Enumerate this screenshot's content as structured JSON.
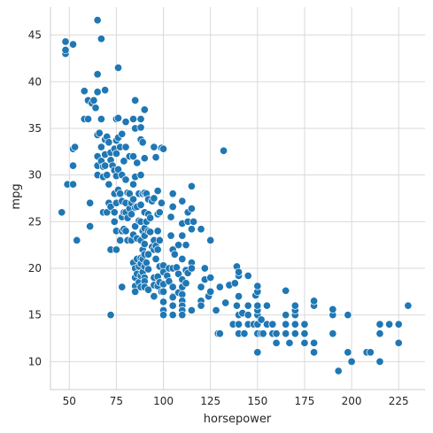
{
  "chart_data": {
    "type": "scatter",
    "title": "",
    "xlabel": "horsepower",
    "ylabel": "mpg",
    "xlim": [
      40,
      239
    ],
    "ylim": [
      7,
      48
    ],
    "xticks": [
      50,
      75,
      100,
      125,
      150,
      175,
      200,
      225
    ],
    "yticks": [
      10,
      15,
      20,
      25,
      30,
      35,
      40,
      45
    ],
    "grid": true,
    "legend": "none",
    "marker_color": "#1f77b4",
    "points": [
      [
        46,
        26
      ],
      [
        48,
        43
      ],
      [
        48,
        43.4
      ],
      [
        48,
        44.3
      ],
      [
        49,
        29
      ],
      [
        52,
        44
      ],
      [
        52,
        31
      ],
      [
        52,
        32.8
      ],
      [
        52,
        29
      ],
      [
        53,
        33
      ],
      [
        54,
        23
      ],
      [
        58,
        36
      ],
      [
        58,
        39
      ],
      [
        60,
        36
      ],
      [
        60,
        38
      ],
      [
        61,
        24.5
      ],
      [
        61,
        27
      ],
      [
        62,
        37.7
      ],
      [
        63,
        38
      ],
      [
        64,
        37.2
      ],
      [
        65,
        46.6
      ],
      [
        65,
        40.8
      ],
      [
        65,
        38.9
      ],
      [
        65,
        34.3
      ],
      [
        65,
        32
      ],
      [
        65,
        31
      ],
      [
        65,
        30
      ],
      [
        66,
        34.5
      ],
      [
        67,
        44.6
      ],
      [
        67,
        36
      ],
      [
        67,
        33
      ],
      [
        67,
        31.5
      ],
      [
        68,
        30.9
      ],
      [
        68,
        29.8
      ],
      [
        68,
        26
      ],
      [
        69,
        39.1
      ],
      [
        69,
        33.8
      ],
      [
        69,
        32.2
      ],
      [
        69,
        31
      ],
      [
        70,
        34.1
      ],
      [
        70,
        30
      ],
      [
        70,
        26
      ],
      [
        71,
        33.5
      ],
      [
        71,
        27
      ],
      [
        71,
        29
      ],
      [
        72,
        32.4
      ],
      [
        72,
        31.6
      ],
      [
        72,
        26.6
      ],
      [
        72,
        22
      ],
      [
        72,
        15
      ],
      [
        73,
        31
      ],
      [
        74,
        32.8
      ],
      [
        74,
        30.5
      ],
      [
        74,
        28
      ],
      [
        74,
        26
      ],
      [
        74,
        25
      ],
      [
        75,
        36
      ],
      [
        75,
        33.7
      ],
      [
        75,
        32.3
      ],
      [
        75,
        29.9
      ],
      [
        75,
        27
      ],
      [
        75,
        24
      ],
      [
        75,
        22
      ],
      [
        76,
        41.5
      ],
      [
        76,
        36.1
      ],
      [
        76,
        34
      ],
      [
        76,
        30.6
      ],
      [
        76,
        28.4
      ],
      [
        77,
        33
      ],
      [
        77,
        28
      ],
      [
        77,
        23
      ],
      [
        78,
        34.4
      ],
      [
        78,
        30
      ],
      [
        78,
        27.2
      ],
      [
        78,
        25.5
      ],
      [
        78,
        24
      ],
      [
        78,
        18
      ],
      [
        79,
        31.5
      ],
      [
        79,
        26
      ],
      [
        79,
        24.2
      ],
      [
        80,
        35.7
      ],
      [
        80,
        33
      ],
      [
        80,
        29.5
      ],
      [
        80,
        27
      ],
      [
        80,
        26
      ],
      [
        80,
        24
      ],
      [
        81,
        28.1
      ],
      [
        81,
        25.4
      ],
      [
        81,
        23
      ],
      [
        82,
        32
      ],
      [
        82,
        28
      ],
      [
        82,
        26.4
      ],
      [
        83,
        27
      ],
      [
        83,
        25.8
      ],
      [
        83,
        23
      ],
      [
        84,
        36
      ],
      [
        84,
        32
      ],
      [
        84,
        29
      ],
      [
        84,
        27.4
      ],
      [
        84,
        23.6
      ],
      [
        84,
        20.6
      ],
      [
        85,
        38
      ],
      [
        85,
        35
      ],
      [
        85,
        29.8
      ],
      [
        85,
        26.5
      ],
      [
        85,
        24.5
      ],
      [
        85,
        20
      ],
      [
        85,
        19
      ],
      [
        85,
        18.1
      ],
      [
        85,
        17.5
      ],
      [
        86,
        31.3
      ],
      [
        86,
        26.6
      ],
      [
        86,
        23.2
      ],
      [
        86,
        21
      ],
      [
        86,
        19.4
      ],
      [
        87,
        28
      ],
      [
        87,
        25.1
      ],
      [
        87,
        20.2
      ],
      [
        87,
        18.5
      ],
      [
        88,
        36
      ],
      [
        88,
        35.1
      ],
      [
        88,
        33.8
      ],
      [
        88,
        30
      ],
      [
        88,
        26.8
      ],
      [
        88,
        25
      ],
      [
        88,
        23
      ],
      [
        88,
        21.1
      ],
      [
        88,
        20.5
      ],
      [
        88,
        19.2
      ],
      [
        88,
        18
      ],
      [
        89,
        33.5
      ],
      [
        89,
        28
      ],
      [
        89,
        24
      ],
      [
        89,
        22
      ],
      [
        89,
        21
      ],
      [
        89,
        19.6
      ],
      [
        90,
        37
      ],
      [
        90,
        31.8
      ],
      [
        90,
        28.1
      ],
      [
        90,
        26
      ],
      [
        90,
        24.3
      ],
      [
        90,
        23.5
      ],
      [
        90,
        22.6
      ],
      [
        90,
        21.5
      ],
      [
        90,
        20.2
      ],
      [
        90,
        19
      ],
      [
        90,
        18.6
      ],
      [
        90,
        18
      ],
      [
        91,
        28
      ],
      [
        91,
        25
      ],
      [
        91,
        20.6
      ],
      [
        92,
        27.4
      ],
      [
        92,
        25.8
      ],
      [
        92,
        24
      ],
      [
        92,
        21.5
      ],
      [
        92,
        19.9
      ],
      [
        92,
        17.7
      ],
      [
        93,
        25.4
      ],
      [
        93,
        23.9
      ],
      [
        94,
        27.2
      ],
      [
        94,
        22.3
      ],
      [
        95,
        33
      ],
      [
        95,
        27.5
      ],
      [
        95,
        23
      ],
      [
        95,
        22
      ],
      [
        95,
        19
      ],
      [
        95,
        18.2
      ],
      [
        95,
        17
      ],
      [
        96,
        31.9
      ],
      [
        96,
        22.4
      ],
      [
        96,
        21
      ],
      [
        97,
        28.3
      ],
      [
        97,
        25.8
      ],
      [
        97,
        24
      ],
      [
        97,
        22
      ],
      [
        97,
        19.1
      ],
      [
        97,
        18.1
      ],
      [
        98,
        26
      ],
      [
        98,
        23
      ],
      [
        98,
        20.2
      ],
      [
        98,
        18.5
      ],
      [
        99,
        32.9
      ],
      [
        99,
        27
      ],
      [
        99,
        17.5
      ],
      [
        100,
        32.8
      ],
      [
        100,
        20.3
      ],
      [
        100,
        19.6
      ],
      [
        100,
        18.3
      ],
      [
        100,
        17.5
      ],
      [
        100,
        16.4
      ],
      [
        100,
        15.5
      ],
      [
        100,
        15
      ],
      [
        102,
        19.2
      ],
      [
        103,
        20
      ],
      [
        103,
        18.6
      ],
      [
        104,
        25.5
      ],
      [
        104,
        23.5
      ],
      [
        105,
        28
      ],
      [
        105,
        26.6
      ],
      [
        105,
        22
      ],
      [
        105,
        20
      ],
      [
        105,
        18
      ],
      [
        105,
        17
      ],
      [
        105,
        16.9
      ],
      [
        105,
        16
      ],
      [
        105,
        15
      ],
      [
        106,
        21.5
      ],
      [
        107,
        20.1
      ],
      [
        108,
        22.5
      ],
      [
        108,
        19.4
      ],
      [
        108,
        17.4
      ],
      [
        110,
        27.2
      ],
      [
        110,
        24.8
      ],
      [
        110,
        23.5
      ],
      [
        110,
        21
      ],
      [
        110,
        18.8
      ],
      [
        110,
        18
      ],
      [
        110,
        17.2
      ],
      [
        110,
        16.5
      ],
      [
        110,
        16
      ],
      [
        110,
        15.5
      ],
      [
        110,
        15
      ],
      [
        112,
        22.5
      ],
      [
        112,
        19.8
      ],
      [
        112,
        18.4
      ],
      [
        113,
        26
      ],
      [
        113,
        25
      ],
      [
        113,
        19.5
      ],
      [
        115,
        28.8
      ],
      [
        115,
        26.4
      ],
      [
        115,
        24.2
      ],
      [
        115,
        20.6
      ],
      [
        115,
        20
      ],
      [
        115,
        15.5
      ],
      [
        116,
        25
      ],
      [
        120,
        24.2
      ],
      [
        120,
        18
      ],
      [
        120,
        16.5
      ],
      [
        120,
        16
      ],
      [
        122,
        20
      ],
      [
        122,
        18.8
      ],
      [
        124,
        17
      ],
      [
        125,
        23
      ],
      [
        125,
        19
      ],
      [
        125,
        17.5
      ],
      [
        128,
        15.5
      ],
      [
        129,
        13
      ],
      [
        130,
        13
      ],
      [
        130,
        18
      ],
      [
        132,
        32.6
      ],
      [
        133,
        16.3
      ],
      [
        135,
        18.2
      ],
      [
        137,
        14
      ],
      [
        138,
        18.4
      ],
      [
        139,
        16
      ],
      [
        139,
        20.2
      ],
      [
        140,
        13
      ],
      [
        140,
        14
      ],
      [
        140,
        15
      ],
      [
        140,
        17
      ],
      [
        140,
        19.2
      ],
      [
        140,
        19.6
      ],
      [
        142,
        15.2
      ],
      [
        143,
        13
      ],
      [
        145,
        14
      ],
      [
        145,
        15
      ],
      [
        145,
        16
      ],
      [
        145,
        19.2
      ],
      [
        148,
        14
      ],
      [
        149,
        17.1
      ],
      [
        150,
        11
      ],
      [
        150,
        13
      ],
      [
        150,
        14
      ],
      [
        150,
        15
      ],
      [
        150,
        15.5
      ],
      [
        150,
        16
      ],
      [
        150,
        17.5
      ],
      [
        150,
        18.1
      ],
      [
        152,
        13
      ],
      [
        152,
        14.5
      ],
      [
        153,
        13
      ],
      [
        155,
        14
      ],
      [
        155,
        16
      ],
      [
        158,
        13
      ],
      [
        158,
        14
      ],
      [
        160,
        12
      ],
      [
        160,
        13
      ],
      [
        165,
        13
      ],
      [
        165,
        14
      ],
      [
        165,
        15
      ],
      [
        165,
        17.6
      ],
      [
        167,
        12
      ],
      [
        170,
        13
      ],
      [
        170,
        14
      ],
      [
        170,
        15
      ],
      [
        170,
        15.5
      ],
      [
        170,
        16
      ],
      [
        175,
        12
      ],
      [
        175,
        13
      ],
      [
        175,
        14
      ],
      [
        180,
        11
      ],
      [
        180,
        12
      ],
      [
        180,
        16
      ],
      [
        180,
        16.5
      ],
      [
        190,
        13
      ],
      [
        190,
        15
      ],
      [
        190,
        15.6
      ],
      [
        193,
        9
      ],
      [
        198,
        11
      ],
      [
        198,
        15
      ],
      [
        200,
        10
      ],
      [
        208,
        11
      ],
      [
        210,
        11
      ],
      [
        215,
        10
      ],
      [
        215,
        13
      ],
      [
        215,
        14
      ],
      [
        220,
        14
      ],
      [
        225,
        12
      ],
      [
        225,
        14
      ],
      [
        230,
        16
      ]
    ]
  }
}
